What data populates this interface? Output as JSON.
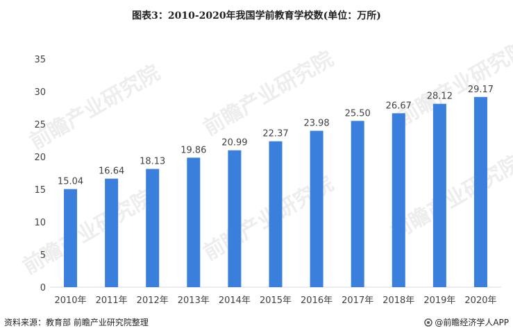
{
  "chart_data": {
    "type": "bar",
    "title": "图表3：2010-2020年我国学前教育学校数(单位：万所)",
    "categories": [
      "2010年",
      "2011年",
      "2012年",
      "2013年",
      "2014年",
      "2015年",
      "2016年",
      "2017年",
      "2018年",
      "2019年",
      "2020年"
    ],
    "values": [
      15.04,
      16.64,
      18.13,
      19.86,
      20.99,
      22.37,
      23.98,
      25.5,
      26.67,
      28.12,
      29.17
    ],
    "data_labels": [
      "15.04",
      "16.64",
      "18.13",
      "19.86",
      "20.99",
      "22.37",
      "23.98",
      "25.50",
      "26.67",
      "28.12",
      "29.17"
    ],
    "yticks": [
      "0",
      "5",
      "10",
      "15",
      "20",
      "25",
      "30",
      "35"
    ],
    "ylim": [
      0,
      35
    ],
    "xlabel": "",
    "ylabel": "",
    "grid": false,
    "bar_color": "#3a7fdc"
  },
  "footer": {
    "source": "资料来源：教育部 前瞻产业研究院整理",
    "brand": "@前瞻经济学人APP"
  },
  "watermark": {
    "text": "前瞻产业研究院"
  },
  "colors": {
    "bar": "#3a7fdc",
    "axis": "#d9d9d9",
    "text": "#404040"
  }
}
